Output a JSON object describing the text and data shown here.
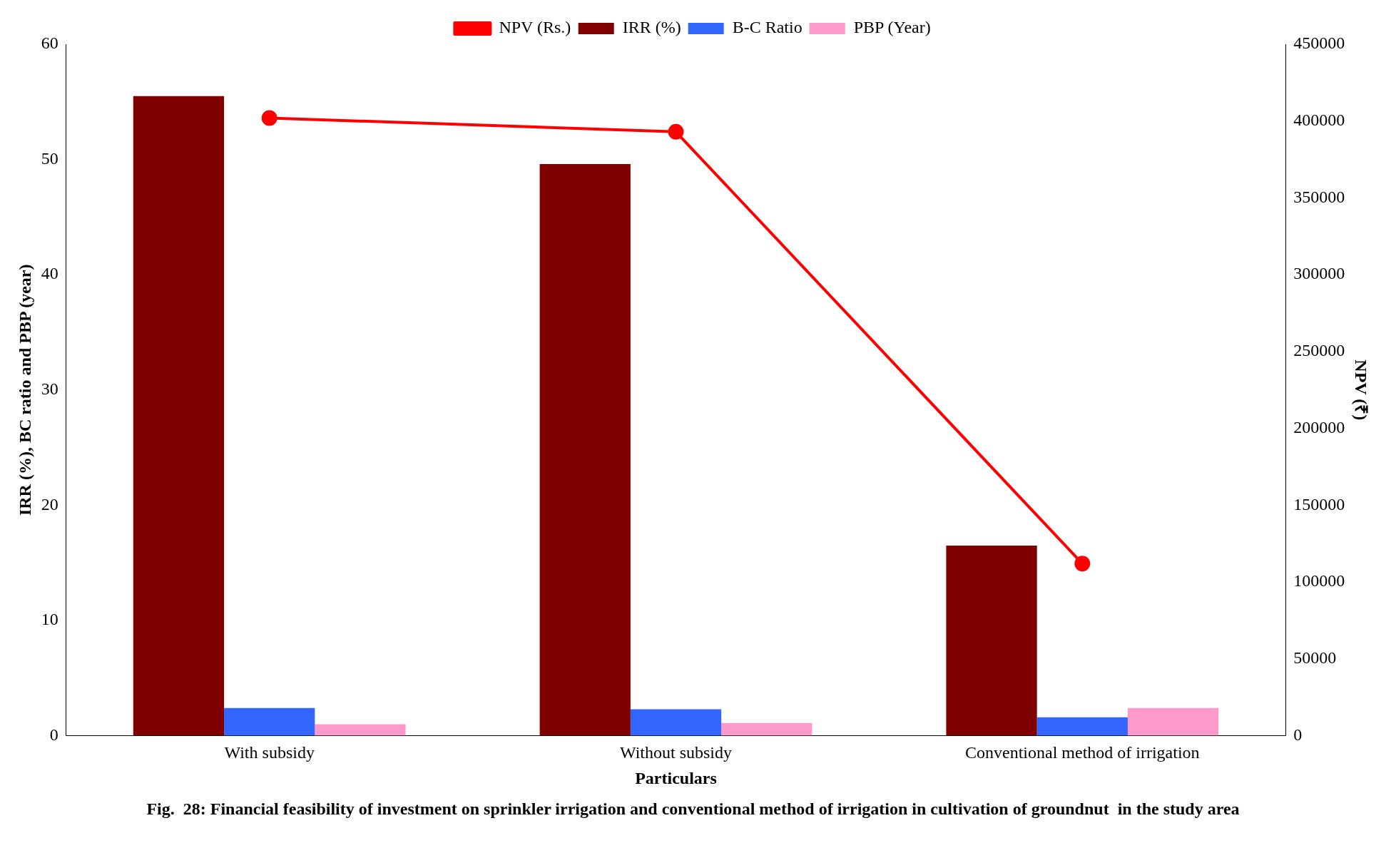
{
  "chart_data": {
    "type": "bar",
    "title": "Fig.  28: Financial feasibility of investment on sprinkler irrigation and conventional method of irrigation in cultivation of groundnut  in the study area",
    "xlabel": "Particulars",
    "ylabel": "IRR (%), BC ratio and PBP (year)",
    "y2label": "NPV (₹)",
    "categories": [
      "With subsidy",
      "Without subsidy",
      "Conventional method of irrigation"
    ],
    "series": [
      {
        "name": "IRR (%)",
        "color": "#800000",
        "values": [
          55.5,
          49.6,
          16.5
        ]
      },
      {
        "name": "B-C Ratio",
        "color": "#3366ff",
        "values": [
          2.4,
          2.3,
          1.6
        ]
      },
      {
        "name": "PBP (Year)",
        "color": "#ff99cc",
        "values": [
          1.0,
          1.1,
          2.4
        ]
      },
      {
        "name": "NPV (Rs.)",
        "type": "line",
        "axis": "y2",
        "color": "#ff0000",
        "marker": "circle",
        "values": [
          402000,
          393000,
          112000
        ]
      }
    ],
    "ylim": [
      0,
      60
    ],
    "yticks": [
      0,
      10,
      20,
      30,
      40,
      50,
      60
    ],
    "y2lim": [
      0,
      450000
    ],
    "y2ticks": [
      0,
      50000,
      100000,
      150000,
      200000,
      250000,
      300000,
      350000,
      400000,
      450000
    ],
    "grid": false,
    "legend": "top"
  }
}
